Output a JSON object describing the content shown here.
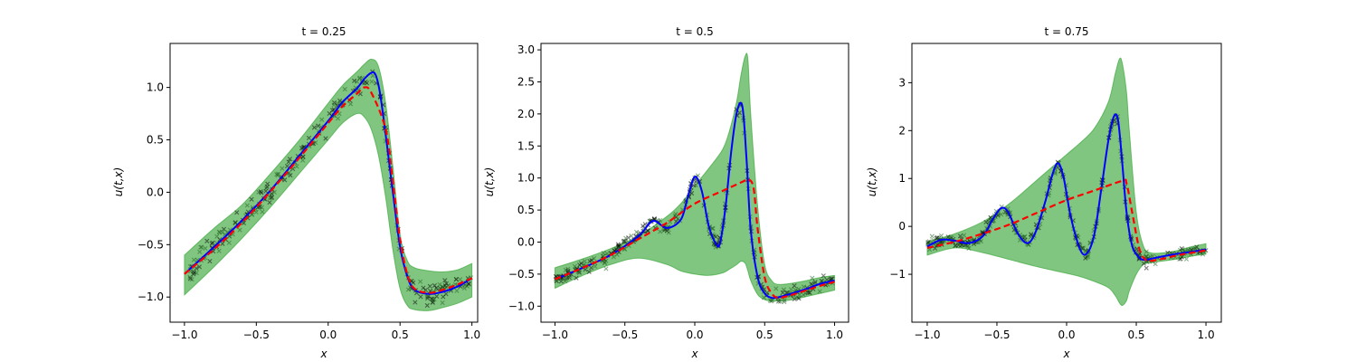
{
  "colors": {
    "band": "#2ca02c",
    "exact": "#0000ff",
    "mean": "#ff0000",
    "observations": "#000000",
    "observations_dark": "#1e5e1e"
  },
  "chart_data": [
    {
      "type": "line",
      "title": "t = 0.25",
      "xlabel": "x",
      "ylabel": "u(t,x)",
      "xlim": [
        -1.1,
        1.04
      ],
      "ylim": [
        -1.24,
        1.42
      ],
      "xticks": [
        -1.0,
        -0.5,
        0.0,
        0.5,
        1.0
      ],
      "xtick_labels": [
        "−1.0",
        "−0.5",
        "0.0",
        "0.5",
        "1.0"
      ],
      "yticks": [
        -1.0,
        -0.5,
        0.0,
        0.5,
        1.0
      ],
      "ytick_labels": [
        "−1.0",
        "−0.5",
        "0.0",
        "0.5",
        "1.0"
      ],
      "series": [
        {
          "kind": "band",
          "x": [
            -1.0,
            -0.8,
            -0.6,
            -0.4,
            -0.2,
            0.0,
            0.1,
            0.2,
            0.25,
            0.3,
            0.35,
            0.4,
            0.45,
            0.5,
            0.55,
            0.6,
            0.7,
            0.8,
            0.9,
            1.0
          ],
          "upper": [
            -0.6,
            -0.35,
            -0.12,
            0.18,
            0.5,
            0.85,
            1.02,
            1.15,
            1.22,
            1.27,
            1.2,
            0.85,
            0.25,
            -0.4,
            -0.65,
            -0.72,
            -0.75,
            -0.76,
            -0.74,
            -0.68
          ],
          "lower": [
            -0.98,
            -0.72,
            -0.44,
            -0.14,
            0.18,
            0.5,
            0.66,
            0.75,
            0.72,
            0.6,
            0.35,
            -0.05,
            -0.55,
            -0.92,
            -1.08,
            -1.12,
            -1.13,
            -1.1,
            -1.06,
            -1.0
          ]
        },
        {
          "kind": "exact",
          "x": [
            -1.0,
            -0.8,
            -0.6,
            -0.4,
            -0.2,
            0.0,
            0.1,
            0.2,
            0.25,
            0.3,
            0.33,
            0.36,
            0.4,
            0.45,
            0.5,
            0.55,
            0.6,
            0.7,
            0.8,
            0.9,
            1.0
          ],
          "y": [
            -0.78,
            -0.53,
            -0.27,
            0.02,
            0.35,
            0.68,
            0.86,
            0.99,
            1.08,
            1.14,
            1.12,
            0.95,
            0.55,
            0.0,
            -0.52,
            -0.8,
            -0.93,
            -0.97,
            -0.95,
            -0.9,
            -0.82
          ]
        },
        {
          "kind": "mean",
          "x": [
            -1.0,
            -0.8,
            -0.6,
            -0.4,
            -0.2,
            0.0,
            0.1,
            0.2,
            0.25,
            0.3,
            0.4,
            0.45,
            0.5,
            0.55,
            0.6,
            0.7,
            0.8,
            0.9,
            1.0
          ],
          "y": [
            -0.78,
            -0.55,
            -0.29,
            0.01,
            0.33,
            0.66,
            0.82,
            0.94,
            1.0,
            0.95,
            0.6,
            0.1,
            -0.45,
            -0.78,
            -0.92,
            -0.96,
            -0.93,
            -0.88,
            -0.82
          ]
        }
      ],
      "observations": {
        "curve_x": [
          -1.0,
          -0.8,
          -0.6,
          -0.4,
          -0.2,
          0.0,
          0.1,
          0.2,
          0.25,
          0.3,
          0.33,
          0.36,
          0.4,
          0.45,
          0.5,
          0.55,
          0.6,
          0.7,
          0.8,
          0.9,
          1.0
        ],
        "curve_y": [
          -0.78,
          -0.53,
          -0.27,
          0.02,
          0.35,
          0.68,
          0.86,
          0.99,
          1.08,
          1.14,
          1.12,
          0.95,
          0.55,
          0.0,
          -0.52,
          -0.8,
          -0.93,
          -0.97,
          -0.95,
          -0.9,
          -0.82
        ],
        "noise": 0.055,
        "count": 260
      }
    },
    {
      "type": "line",
      "title": "t = 0.5",
      "xlabel": "x",
      "ylabel": "u(t,x)",
      "xlim": [
        -1.1,
        1.1
      ],
      "ylim": [
        -1.25,
        3.1
      ],
      "xticks": [
        -1.0,
        -0.5,
        0.0,
        0.5,
        1.0
      ],
      "xtick_labels": [
        "−1.0",
        "−0.5",
        "0.0",
        "0.5",
        "1.0"
      ],
      "yticks": [
        -1.0,
        -0.5,
        0.0,
        0.5,
        1.0,
        1.5,
        2.0,
        2.5,
        3.0
      ],
      "ytick_labels": [
        "−1.0",
        "−0.5",
        "0.0",
        "0.5",
        "1.0",
        "1.5",
        "2.0",
        "2.5",
        "3.0"
      ],
      "series": [
        {
          "kind": "band",
          "x": [
            -1.0,
            -0.8,
            -0.6,
            -0.4,
            -0.2,
            -0.1,
            0.0,
            0.1,
            0.2,
            0.25,
            0.3,
            0.33,
            0.36,
            0.38,
            0.4,
            0.45,
            0.5,
            0.55,
            0.6,
            0.7,
            0.8,
            0.9,
            1.0
          ],
          "upper": [
            -0.4,
            -0.26,
            -0.1,
            0.1,
            0.4,
            0.6,
            0.88,
            1.15,
            1.45,
            1.75,
            2.2,
            2.6,
            2.9,
            2.85,
            2.0,
            0.55,
            -0.35,
            -0.6,
            -0.66,
            -0.64,
            -0.6,
            -0.55,
            -0.52
          ],
          "lower": [
            -0.72,
            -0.52,
            -0.35,
            -0.25,
            -0.35,
            -0.45,
            -0.5,
            -0.52,
            -0.48,
            -0.42,
            -0.35,
            -0.3,
            -0.33,
            -0.45,
            -0.6,
            -0.82,
            -0.9,
            -0.92,
            -0.92,
            -0.9,
            -0.85,
            -0.8,
            -0.75
          ]
        },
        {
          "kind": "exact",
          "x": [
            -1.0,
            -0.8,
            -0.6,
            -0.4,
            -0.3,
            -0.2,
            -0.1,
            -0.05,
            0.0,
            0.05,
            0.1,
            0.15,
            0.18,
            0.22,
            0.26,
            0.3,
            0.34,
            0.37,
            0.4,
            0.45,
            0.5,
            0.55,
            0.6,
            0.7,
            0.8,
            0.9,
            1.0
          ],
          "y": [
            -0.58,
            -0.4,
            -0.2,
            0.1,
            0.33,
            0.22,
            0.35,
            0.7,
            1.02,
            0.8,
            0.25,
            -0.02,
            -0.02,
            0.55,
            1.4,
            2.02,
            2.12,
            1.3,
            0.2,
            -0.55,
            -0.8,
            -0.87,
            -0.86,
            -0.8,
            -0.73,
            -0.65,
            -0.6
          ]
        },
        {
          "kind": "mean",
          "x": [
            -1.0,
            -0.8,
            -0.6,
            -0.4,
            -0.2,
            0.0,
            0.2,
            0.3,
            0.35,
            0.38,
            0.42,
            0.45,
            0.5,
            0.55,
            0.6,
            0.7,
            0.8,
            0.9,
            1.0
          ],
          "y": [
            -0.58,
            -0.4,
            -0.2,
            0.05,
            0.3,
            0.6,
            0.8,
            0.9,
            0.95,
            0.98,
            0.85,
            0.2,
            -0.55,
            -0.8,
            -0.87,
            -0.82,
            -0.75,
            -0.68,
            -0.62
          ]
        }
      ],
      "observations": {
        "curve_x": [
          -1.0,
          -0.8,
          -0.6,
          -0.4,
          -0.3,
          -0.2,
          -0.1,
          -0.05,
          0.0,
          0.05,
          0.1,
          0.15,
          0.18,
          0.22,
          0.26,
          0.3,
          0.34,
          0.37,
          0.4,
          0.45,
          0.5,
          0.55,
          0.6,
          0.7,
          0.8,
          0.9,
          1.0
        ],
        "curve_y": [
          -0.58,
          -0.4,
          -0.2,
          0.1,
          0.33,
          0.22,
          0.35,
          0.7,
          1.02,
          0.8,
          0.25,
          -0.02,
          -0.02,
          0.55,
          1.4,
          2.02,
          2.12,
          1.3,
          0.2,
          -0.55,
          -0.8,
          -0.87,
          -0.86,
          -0.8,
          -0.73,
          -0.65,
          -0.6
        ],
        "noise": 0.055,
        "count": 300
      }
    },
    {
      "type": "line",
      "title": "t = 0.75",
      "xlabel": "x",
      "ylabel": "u(t,x)",
      "xlim": [
        -1.11,
        1.11
      ],
      "ylim": [
        -2.0,
        3.82
      ],
      "xticks": [
        -1.0,
        -0.5,
        0.0,
        0.5,
        1.0
      ],
      "xtick_labels": [
        "−1.0",
        "−0.5",
        "0.0",
        "0.5",
        "1.0"
      ],
      "yticks": [
        -1,
        0,
        1,
        2,
        3
      ],
      "ytick_labels": [
        "−1",
        "0",
        "1",
        "2",
        "3"
      ],
      "series": [
        {
          "kind": "band",
          "x": [
            -1.0,
            -0.8,
            -0.6,
            -0.4,
            -0.2,
            0.0,
            0.1,
            0.2,
            0.3,
            0.35,
            0.38,
            0.4,
            0.43,
            0.45,
            0.5,
            0.55,
            0.6,
            0.7,
            0.8,
            0.9,
            1.0
          ],
          "upper": [
            -0.32,
            -0.15,
            0.1,
            0.5,
            1.0,
            1.5,
            1.75,
            2.05,
            2.6,
            3.2,
            3.5,
            3.4,
            2.8,
            2.0,
            0.3,
            -0.4,
            -0.55,
            -0.55,
            -0.5,
            -0.42,
            -0.36
          ],
          "lower": [
            -0.6,
            -0.45,
            -0.55,
            -0.7,
            -0.85,
            -0.98,
            -1.05,
            -1.15,
            -1.28,
            -1.45,
            -1.6,
            -1.65,
            -1.55,
            -1.35,
            -1.0,
            -0.8,
            -0.76,
            -0.72,
            -0.68,
            -0.62,
            -0.58
          ]
        },
        {
          "kind": "exact",
          "x": [
            -1.0,
            -0.9,
            -0.8,
            -0.7,
            -0.6,
            -0.53,
            -0.47,
            -0.42,
            -0.35,
            -0.28,
            -0.22,
            -0.15,
            -0.1,
            -0.06,
            -0.02,
            0.03,
            0.1,
            0.15,
            0.2,
            0.25,
            0.3,
            0.34,
            0.37,
            0.4,
            0.43,
            0.47,
            0.52,
            0.56,
            0.6,
            0.7,
            0.8,
            0.9,
            1.0
          ],
          "y": [
            -0.42,
            -0.28,
            -0.3,
            -0.35,
            -0.2,
            0.15,
            0.38,
            0.3,
            -0.15,
            -0.35,
            -0.1,
            0.55,
            1.1,
            1.32,
            1.0,
            0.2,
            -0.5,
            -0.55,
            -0.15,
            0.8,
            1.8,
            2.3,
            2.2,
            1.3,
            0.3,
            -0.4,
            -0.65,
            -0.7,
            -0.68,
            -0.62,
            -0.57,
            -0.53,
            -0.48
          ]
        },
        {
          "kind": "mean",
          "x": [
            -1.0,
            -0.8,
            -0.6,
            -0.4,
            -0.2,
            0.0,
            0.2,
            0.4,
            0.43,
            0.47,
            0.52,
            0.56,
            0.6,
            0.7,
            0.8,
            0.9,
            1.0
          ],
          "y": [
            -0.45,
            -0.32,
            -0.15,
            0.05,
            0.3,
            0.55,
            0.75,
            0.95,
            0.9,
            0.3,
            -0.45,
            -0.68,
            -0.72,
            -0.67,
            -0.6,
            -0.55,
            -0.5
          ]
        }
      ],
      "observations": {
        "curve_x": [
          -1.0,
          -0.9,
          -0.8,
          -0.7,
          -0.6,
          -0.53,
          -0.47,
          -0.42,
          -0.35,
          -0.28,
          -0.22,
          -0.15,
          -0.1,
          -0.06,
          -0.02,
          0.03,
          0.1,
          0.15,
          0.2,
          0.25,
          0.3,
          0.34,
          0.37,
          0.4,
          0.43,
          0.47,
          0.52,
          0.56,
          0.6,
          0.7,
          0.8,
          0.9,
          1.0
        ],
        "curve_y": [
          -0.42,
          -0.28,
          -0.3,
          -0.35,
          -0.2,
          0.15,
          0.38,
          0.3,
          -0.15,
          -0.35,
          -0.1,
          0.55,
          1.1,
          1.32,
          1.0,
          0.2,
          -0.5,
          -0.55,
          -0.15,
          0.8,
          1.8,
          2.3,
          2.2,
          1.3,
          0.3,
          -0.4,
          -0.65,
          -0.7,
          -0.68,
          -0.62,
          -0.57,
          -0.53,
          -0.48
        ],
        "noise": 0.07,
        "count": 300
      }
    }
  ]
}
